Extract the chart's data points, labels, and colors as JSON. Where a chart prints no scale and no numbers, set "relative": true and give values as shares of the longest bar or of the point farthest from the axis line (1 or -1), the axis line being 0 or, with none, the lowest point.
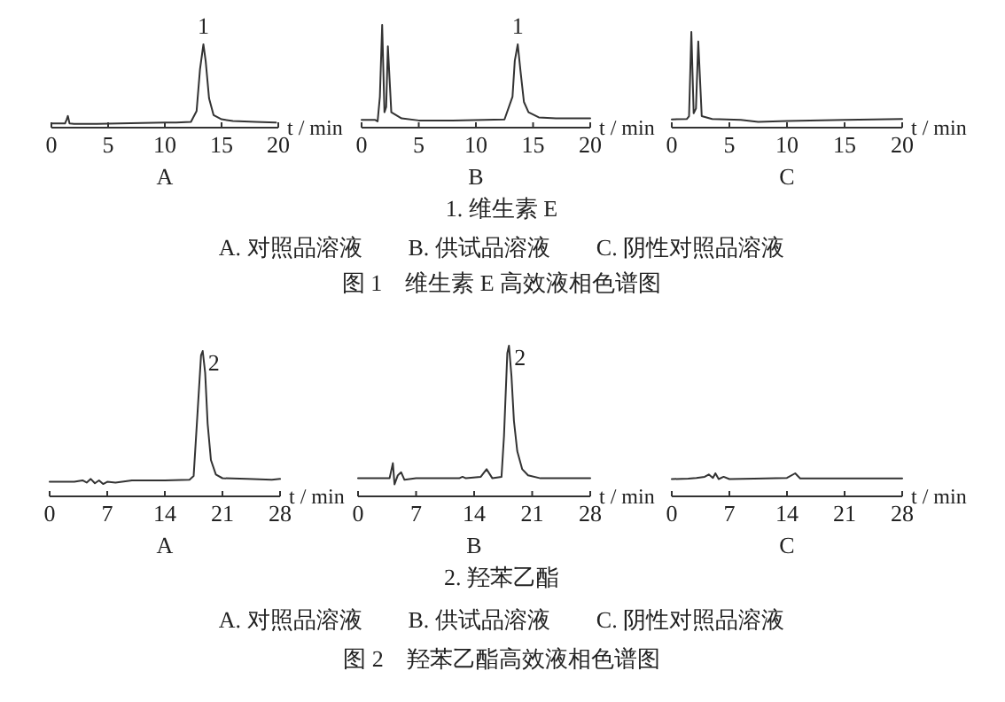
{
  "chart_data": [
    {
      "type": "line",
      "relative": true,
      "title": "A",
      "xlabel": "t / min",
      "xlim": [
        0,
        20
      ],
      "xticks": [
        0,
        5,
        10,
        15,
        20
      ],
      "annotations": [
        {
          "text": "1",
          "x": 13.4,
          "y": 1
        }
      ],
      "series": [
        {
          "color": "#333333",
          "x": [
            0,
            1.2,
            1.35,
            1.45,
            1.6,
            2,
            4,
            6,
            8,
            10,
            11,
            12.3,
            12.8,
            13.1,
            13.4,
            13.6,
            13.9,
            14.3,
            15,
            16,
            18,
            19.8
          ],
          "values": [
            0.05,
            0.05,
            0.1,
            0.14,
            0.05,
            0.045,
            0.045,
            0.05,
            0.055,
            0.06,
            0.06,
            0.07,
            0.2,
            0.7,
            1,
            0.8,
            0.35,
            0.15,
            0.1,
            0.08,
            0.07,
            0.06
          ]
        }
      ]
    },
    {
      "type": "line",
      "relative": true,
      "title": "B",
      "xlabel": "t / min",
      "xlim": [
        0,
        20
      ],
      "xticks": [
        0,
        5,
        10,
        15,
        20
      ],
      "annotations": [
        {
          "text": "1",
          "x": 13.66,
          "y": 0.81
        }
      ],
      "series": [
        {
          "color": "#333333",
          "x": [
            0,
            1.2,
            1.4,
            1.6,
            1.8,
            2.0,
            2.15,
            2.3,
            2.6,
            3.5,
            5,
            8,
            12.5,
            13.2,
            13.4,
            13.66,
            13.9,
            14.2,
            14.6,
            15.5,
            17,
            20
          ],
          "values": [
            0.075,
            0.075,
            0.06,
            0.3,
            1,
            0.15,
            0.2,
            0.79,
            0.15,
            0.09,
            0.07,
            0.07,
            0.08,
            0.3,
            0.65,
            0.81,
            0.55,
            0.25,
            0.15,
            0.1,
            0.09,
            0.09
          ]
        }
      ]
    },
    {
      "type": "line",
      "relative": true,
      "title": "C",
      "xlabel": "t / min",
      "xlim": [
        0,
        20
      ],
      "xticks": [
        0,
        5,
        10,
        15,
        20
      ],
      "annotations": [
        "1. 维生素 E",
        "A. 对照品溶液　　B. 供试品溶液　　C. 阴性对照品溶液",
        "图 1　维生素 E 高效液相色谱图"
      ],
      "series": [
        {
          "color": "#333333",
          "x": [
            0,
            1.3,
            1.5,
            1.7,
            1.9,
            2.1,
            2.3,
            2.6,
            3.5,
            6,
            7.5,
            10,
            15,
            20
          ],
          "values": [
            0.086,
            0.09,
            0.12,
            1,
            0.15,
            0.2,
            0.9,
            0.12,
            0.09,
            0.08,
            0.06,
            0.07,
            0.08,
            0.09
          ]
        }
      ]
    },
    {
      "type": "line",
      "relative": true,
      "title": "A",
      "xlabel": "t / min",
      "xlim": [
        0,
        28
      ],
      "xticks": [
        0,
        7,
        14,
        21,
        28
      ],
      "annotations": [
        {
          "text": "2",
          "x": 18.6,
          "y": 1
        }
      ],
      "series": [
        {
          "color": "#333333",
          "x": [
            0,
            3,
            4,
            4.5,
            5,
            5.5,
            6,
            6.5,
            7,
            8,
            10,
            14,
            17,
            17.5,
            18,
            18.4,
            18.6,
            18.9,
            19.2,
            19.6,
            20.2,
            21,
            24,
            27,
            28
          ],
          "values": [
            0.1,
            0.1,
            0.11,
            0.095,
            0.12,
            0.09,
            0.11,
            0.085,
            0.1,
            0.095,
            0.11,
            0.11,
            0.115,
            0.14,
            0.6,
            0.97,
            1,
            0.85,
            0.5,
            0.25,
            0.15,
            0.125,
            0.12,
            0.115,
            0.12
          ]
        }
      ]
    },
    {
      "type": "line",
      "relative": true,
      "title": "B",
      "xlabel": "t / min",
      "xlim": [
        0,
        28
      ],
      "xticks": [
        0,
        7,
        14,
        21,
        28
      ],
      "annotations": [
        {
          "text": "2",
          "x": 18.2,
          "y": 1
        }
      ],
      "series": [
        {
          "color": "#333333",
          "x": [
            0,
            3.8,
            4.2,
            4.4,
            4.8,
            5.2,
            5.6,
            7,
            12.2,
            12.6,
            13,
            14.8,
            15.5,
            16.2,
            17.3,
            17.6,
            18,
            18.2,
            18.5,
            18.8,
            19.2,
            19.8,
            20.5,
            22,
            28
          ],
          "values": [
            0.12,
            0.12,
            0.22,
            0.08,
            0.14,
            0.16,
            0.11,
            0.12,
            0.12,
            0.13,
            0.12,
            0.13,
            0.18,
            0.12,
            0.13,
            0.4,
            0.95,
            1,
            0.8,
            0.5,
            0.3,
            0.18,
            0.14,
            0.12,
            0.12
          ]
        }
      ]
    },
    {
      "type": "line",
      "relative": true,
      "title": "C",
      "xlabel": "t / min",
      "xlim": [
        0,
        28
      ],
      "xticks": [
        0,
        7,
        14,
        21,
        28
      ],
      "annotations": [
        "2. 羟苯乙酯",
        "A. 对照品溶液　　B. 供试品溶液　　C. 阴性对照品溶液",
        "图 2　羟苯乙酯高效液相色谱图"
      ],
      "series": [
        {
          "color": "#333333",
          "x": [
            0,
            2,
            3,
            4,
            4.5,
            5,
            5.3,
            5.7,
            6.3,
            7,
            10,
            14,
            15,
            15.6,
            20,
            28
          ],
          "values": [
            0.75,
            0.77,
            0.8,
            0.85,
            0.95,
            0.8,
            1,
            0.75,
            0.85,
            0.75,
            0.77,
            0.8,
            1,
            0.78,
            0.78,
            0.78
          ]
        }
      ]
    }
  ]
}
